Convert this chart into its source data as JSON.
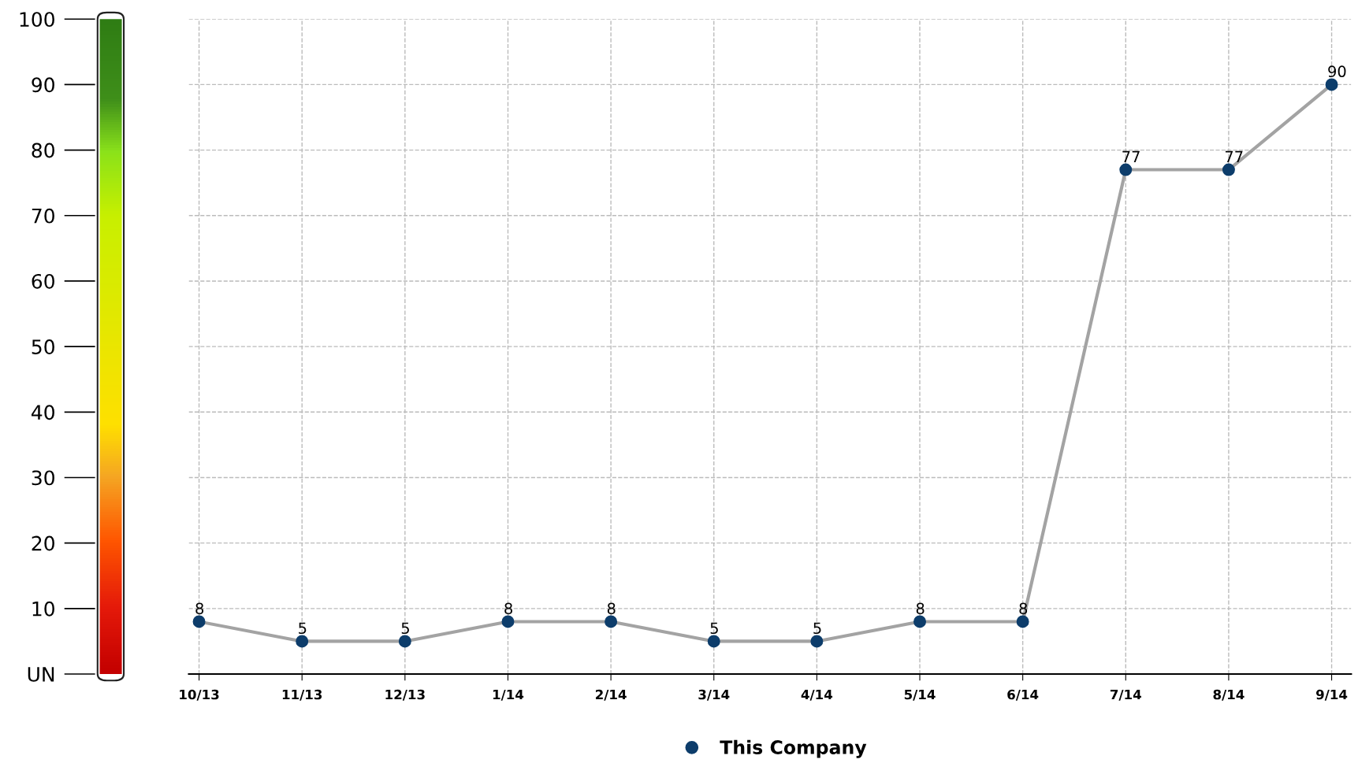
{
  "chart_data": {
    "type": "line",
    "categories": [
      "10/13",
      "11/13",
      "12/13",
      "1/14",
      "2/14",
      "3/14",
      "4/14",
      "5/14",
      "6/14",
      "7/14",
      "8/14",
      "9/14"
    ],
    "series": [
      {
        "name": "This Company",
        "color": "#0d3d6b",
        "values": [
          8,
          5,
          5,
          8,
          8,
          5,
          5,
          8,
          8,
          77,
          77,
          90
        ]
      }
    ],
    "ylim": [
      0,
      100
    ],
    "yticks": [
      {
        "value": 0,
        "label": "UN"
      },
      10,
      20,
      30,
      40,
      50,
      60,
      70,
      80,
      90,
      100
    ],
    "grid": true,
    "legend": "bottom",
    "marker": "circle",
    "line_style": "solid",
    "data_labels": true
  }
}
